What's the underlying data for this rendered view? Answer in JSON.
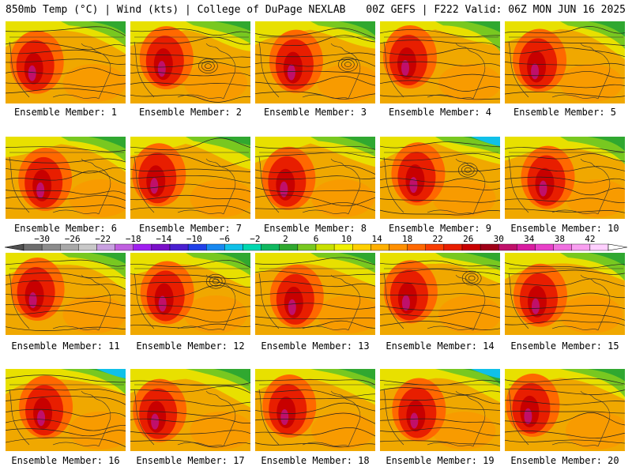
{
  "header": {
    "title_left": "850mb Temp (°C) | Wind (kts) | College of DuPage NEXLAB",
    "title_right": "00Z GEFS | F222 Valid: 06Z MON JUN 16 2025"
  },
  "members": [
    {
      "label": "Ensemble Member: 1"
    },
    {
      "label": "Ensemble Member: 2"
    },
    {
      "label": "Ensemble Member: 3"
    },
    {
      "label": "Ensemble Member: 4"
    },
    {
      "label": "Ensemble Member: 5"
    },
    {
      "label": "Ensemble Member: 6"
    },
    {
      "label": "Ensemble Member: 7"
    },
    {
      "label": "Ensemble Member: 8"
    },
    {
      "label": "Ensemble Member: 9"
    },
    {
      "label": "Ensemble Member: 10"
    },
    {
      "label": "Ensemble Member: 11"
    },
    {
      "label": "Ensemble Member: 12"
    },
    {
      "label": "Ensemble Member: 13"
    },
    {
      "label": "Ensemble Member: 14"
    },
    {
      "label": "Ensemble Member: 15"
    },
    {
      "label": "Ensemble Member: 16"
    },
    {
      "label": "Ensemble Member: 17"
    },
    {
      "label": "Ensemble Member: 18"
    },
    {
      "label": "Ensemble Member: 19"
    },
    {
      "label": "Ensemble Member: 20"
    }
  ],
  "colorbar": {
    "tick_labels": [
      "−30",
      "−26",
      "−22",
      "−18",
      "−14",
      "−10",
      "−6",
      "−2",
      "2",
      "6",
      "10",
      "14",
      "18",
      "22",
      "26",
      "30",
      "34",
      "38",
      "42"
    ],
    "colors": [
      "#6e6e6e",
      "#8c8c8c",
      "#a8a8a8",
      "#c8c8c8",
      "#c8a0e0",
      "#c060e0",
      "#a020f0",
      "#7a10c8",
      "#4a20d0",
      "#2040e8",
      "#1888f0",
      "#10c0e8",
      "#00d8b0",
      "#10b860",
      "#30a830",
      "#78c820",
      "#c8e000",
      "#f0f000",
      "#ffd000",
      "#ffb000",
      "#ff9000",
      "#ff6800",
      "#f83c00",
      "#e81e00",
      "#c80000",
      "#a00018",
      "#c0106a",
      "#d81ca0",
      "#e840c8",
      "#f070e0",
      "#f8a0f0",
      "#ffd0ff"
    ]
  }
}
